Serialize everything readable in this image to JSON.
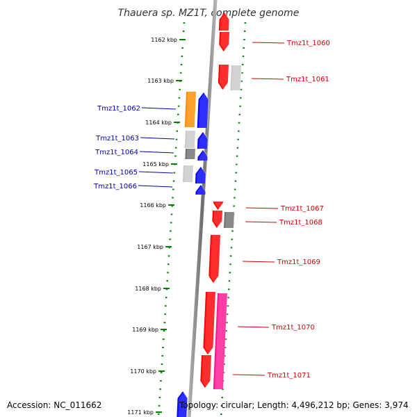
{
  "title": "Thauera sp. MZ1T, complete genome",
  "accession": "Accession: NC_011662",
  "topology": "Topology: circular; Length: 4,496,212 bp; Genes: 3,974",
  "colors": {
    "red": "#ff0000",
    "blue": "#0000ff",
    "orange": "#ff8c00",
    "pink": "#ff1493",
    "lightgray": "#c8c8c8",
    "darkgray": "#707070",
    "axis": "#808080",
    "dots": "#008000",
    "label_red": "#cc0000",
    "label_blue": "#0000aa"
  },
  "scale": [
    {
      "label": "1162 kbp"
    },
    {
      "label": "1163 kbp"
    },
    {
      "label": "1164 kbp"
    },
    {
      "label": "1165 kbp"
    },
    {
      "label": "1166 kbp"
    },
    {
      "label": "1167 kbp"
    },
    {
      "label": "1168 kbp"
    },
    {
      "label": "1169 kbp"
    },
    {
      "label": "1170 kbp"
    },
    {
      "label": "1171 kbp"
    }
  ],
  "labels_right": [
    {
      "text": "Tmz1t_1060"
    },
    {
      "text": "Tmz1t_1061"
    },
    {
      "text": "Tmz1t_1067"
    },
    {
      "text": "Tmz1t_1068"
    },
    {
      "text": "Tmz1t_1069"
    },
    {
      "text": "Tmz1t_1070"
    },
    {
      "text": "Tmz1t_1071"
    }
  ],
  "labels_left": [
    {
      "text": "Tmz1t_1062"
    },
    {
      "text": "Tmz1t_1063"
    },
    {
      "text": "Tmz1t_1064"
    },
    {
      "text": "Tmz1t_1065"
    },
    {
      "text": "Tmz1t_1066"
    }
  ]
}
